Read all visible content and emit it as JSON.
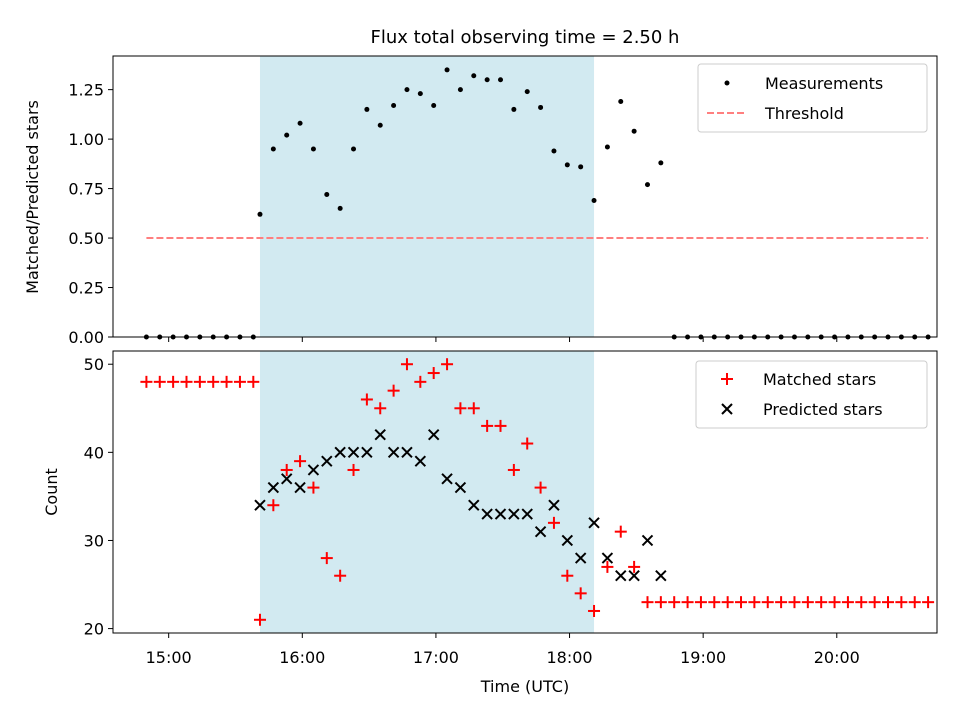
{
  "title": "Flux total observing time = 2.50 h",
  "colors": {
    "band": "#add8e6",
    "measurement": "#000000",
    "threshold": "#ff7f7f",
    "matched": "#ff0000",
    "predicted": "#000000"
  },
  "chart_data": [
    {
      "type": "scatter",
      "title": "Flux total observing time = 2.50 h",
      "xlabel": "",
      "ylabel": "Matched/Predicted stars",
      "xlim": [
        "14:35",
        "20:45"
      ],
      "ylim": [
        0,
        1.42
      ],
      "yticks": [
        0,
        0.25,
        0.5,
        0.75,
        1.0,
        1.25
      ],
      "ytick_labels": [
        "0.00",
        "0.25",
        "0.50",
        "0.75",
        "1.00",
        "1.25"
      ],
      "shaded_interval": [
        "15:41",
        "18:11"
      ],
      "legend_position": "upper right",
      "series": [
        {
          "name": "Measurements",
          "marker": "dot",
          "points": [
            [
              "14:50",
              0
            ],
            [
              "14:56",
              0
            ],
            [
              "15:02",
              0
            ],
            [
              "15:08",
              0
            ],
            [
              "15:14",
              0
            ],
            [
              "15:20",
              0
            ],
            [
              "15:26",
              0
            ],
            [
              "15:32",
              0
            ],
            [
              "15:38",
              0
            ],
            [
              "15:41",
              0.62
            ],
            [
              "15:47",
              0.95
            ],
            [
              "15:53",
              1.02
            ],
            [
              "15:59",
              1.08
            ],
            [
              "16:05",
              0.95
            ],
            [
              "16:11",
              0.72
            ],
            [
              "16:17",
              0.65
            ],
            [
              "16:23",
              0.95
            ],
            [
              "16:29",
              1.15
            ],
            [
              "16:35",
              1.07
            ],
            [
              "16:41",
              1.17
            ],
            [
              "16:47",
              1.25
            ],
            [
              "16:53",
              1.23
            ],
            [
              "16:59",
              1.17
            ],
            [
              "17:05",
              1.35
            ],
            [
              "17:11",
              1.25
            ],
            [
              "17:17",
              1.32
            ],
            [
              "17:23",
              1.3
            ],
            [
              "17:29",
              1.3
            ],
            [
              "17:35",
              1.15
            ],
            [
              "17:41",
              1.24
            ],
            [
              "17:47",
              1.16
            ],
            [
              "17:53",
              0.94
            ],
            [
              "17:59",
              0.87
            ],
            [
              "18:05",
              0.86
            ],
            [
              "18:11",
              0.69
            ],
            [
              "18:17",
              0.96
            ],
            [
              "18:23",
              1.19
            ],
            [
              "18:29",
              1.04
            ],
            [
              "18:35",
              0.77
            ],
            [
              "18:41",
              0.88
            ],
            [
              "18:47",
              0
            ],
            [
              "18:53",
              0
            ],
            [
              "18:59",
              0
            ],
            [
              "19:05",
              0
            ],
            [
              "19:11",
              0
            ],
            [
              "19:17",
              0
            ],
            [
              "19:23",
              0
            ],
            [
              "19:29",
              0
            ],
            [
              "19:35",
              0
            ],
            [
              "19:41",
              0
            ],
            [
              "19:47",
              0
            ],
            [
              "19:53",
              0
            ],
            [
              "19:59",
              0
            ],
            [
              "20:05",
              0
            ],
            [
              "20:11",
              0
            ],
            [
              "20:17",
              0
            ],
            [
              "20:23",
              0
            ],
            [
              "20:29",
              0
            ],
            [
              "20:35",
              0
            ],
            [
              "20:41",
              0
            ]
          ]
        },
        {
          "name": "Threshold",
          "style": "dashed line",
          "points": [
            [
              "14:50",
              0.5
            ],
            [
              "20:41",
              0.5
            ]
          ]
        }
      ]
    },
    {
      "type": "scatter",
      "title": "",
      "xlabel": "Time (UTC)",
      "ylabel": "Count",
      "xlim": [
        "14:35",
        "20:45"
      ],
      "ylim": [
        19.5,
        51.5
      ],
      "yticks": [
        20,
        30,
        40,
        50
      ],
      "ytick_labels": [
        "20",
        "30",
        "40",
        "50"
      ],
      "xticks": [
        "15:00",
        "16:00",
        "17:00",
        "18:00",
        "19:00",
        "20:00"
      ],
      "shaded_interval": [
        "15:41",
        "18:11"
      ],
      "legend_position": "upper right",
      "series": [
        {
          "name": "Matched stars",
          "marker": "plus",
          "points": [
            [
              "14:50",
              48
            ],
            [
              "14:56",
              48
            ],
            [
              "15:02",
              48
            ],
            [
              "15:08",
              48
            ],
            [
              "15:14",
              48
            ],
            [
              "15:20",
              48
            ],
            [
              "15:26",
              48
            ],
            [
              "15:32",
              48
            ],
            [
              "15:38",
              48
            ],
            [
              "15:41",
              21
            ],
            [
              "15:47",
              34
            ],
            [
              "15:53",
              38
            ],
            [
              "15:59",
              39
            ],
            [
              "16:05",
              36
            ],
            [
              "16:11",
              28
            ],
            [
              "16:17",
              26
            ],
            [
              "16:23",
              38
            ],
            [
              "16:29",
              46
            ],
            [
              "16:35",
              45
            ],
            [
              "16:41",
              47
            ],
            [
              "16:47",
              50
            ],
            [
              "16:53",
              48
            ],
            [
              "16:59",
              49
            ],
            [
              "17:05",
              50
            ],
            [
              "17:11",
              45
            ],
            [
              "17:17",
              45
            ],
            [
              "17:23",
              43
            ],
            [
              "17:29",
              43
            ],
            [
              "17:35",
              38
            ],
            [
              "17:41",
              41
            ],
            [
              "17:47",
              36
            ],
            [
              "17:53",
              32
            ],
            [
              "17:59",
              26
            ],
            [
              "18:05",
              24
            ],
            [
              "18:11",
              22
            ],
            [
              "18:17",
              27
            ],
            [
              "18:23",
              31
            ],
            [
              "18:29",
              27
            ],
            [
              "18:35",
              23
            ],
            [
              "18:41",
              23
            ],
            [
              "18:47",
              23
            ],
            [
              "18:53",
              23
            ],
            [
              "18:59",
              23
            ],
            [
              "19:05",
              23
            ],
            [
              "19:11",
              23
            ],
            [
              "19:17",
              23
            ],
            [
              "19:23",
              23
            ],
            [
              "19:29",
              23
            ],
            [
              "19:35",
              23
            ],
            [
              "19:41",
              23
            ],
            [
              "19:47",
              23
            ],
            [
              "19:53",
              23
            ],
            [
              "19:59",
              23
            ],
            [
              "20:05",
              23
            ],
            [
              "20:11",
              23
            ],
            [
              "20:17",
              23
            ],
            [
              "20:23",
              23
            ],
            [
              "20:29",
              23
            ],
            [
              "20:35",
              23
            ],
            [
              "20:41",
              23
            ]
          ]
        },
        {
          "name": "Predicted stars",
          "marker": "x",
          "points": [
            [
              "15:41",
              34
            ],
            [
              "15:47",
              36
            ],
            [
              "15:53",
              37
            ],
            [
              "15:59",
              36
            ],
            [
              "16:05",
              38
            ],
            [
              "16:11",
              39
            ],
            [
              "16:17",
              40
            ],
            [
              "16:23",
              40
            ],
            [
              "16:29",
              40
            ],
            [
              "16:35",
              42
            ],
            [
              "16:41",
              40
            ],
            [
              "16:47",
              40
            ],
            [
              "16:53",
              39
            ],
            [
              "16:59",
              42
            ],
            [
              "17:05",
              37
            ],
            [
              "17:11",
              36
            ],
            [
              "17:17",
              34
            ],
            [
              "17:23",
              33
            ],
            [
              "17:29",
              33
            ],
            [
              "17:35",
              33
            ],
            [
              "17:41",
              33
            ],
            [
              "17:47",
              31
            ],
            [
              "17:53",
              34
            ],
            [
              "17:59",
              30
            ],
            [
              "18:05",
              28
            ],
            [
              "18:11",
              32
            ],
            [
              "18:17",
              28
            ],
            [
              "18:23",
              26
            ],
            [
              "18:29",
              26
            ],
            [
              "18:35",
              30
            ],
            [
              "18:41",
              26
            ]
          ]
        }
      ]
    }
  ]
}
